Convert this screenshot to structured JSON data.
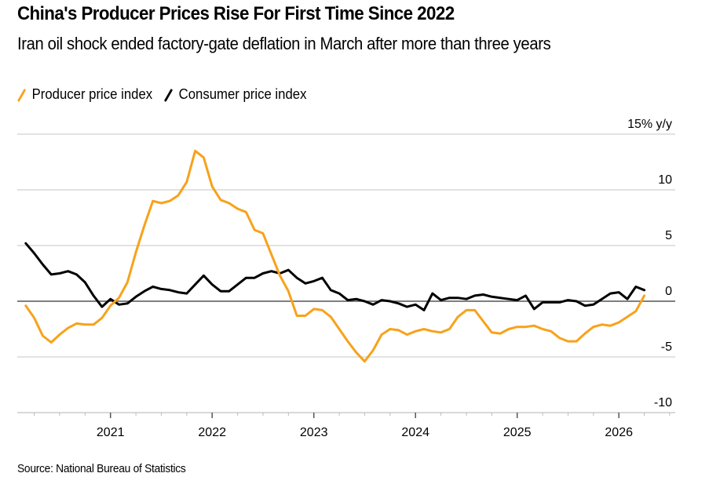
{
  "header": {
    "title": "China's Producer Prices Rise For First Time Since 2022",
    "subtitle": "Iran oil shock ended factory-gate deflation in March after more than three years"
  },
  "footer": {
    "source": "Source: National Bureau of Statistics"
  },
  "chart_data": {
    "type": "line",
    "title": "China's Producer Prices Rise For First Time Since 2022",
    "subtitle": "Iran oil shock ended factory-gate deflation in March after more than three years",
    "xlabel": "",
    "ylabel": "% y/y",
    "y_unit_label": "15% y/y",
    "ylim": [
      -10,
      15
    ],
    "yticks": [
      15,
      10,
      5,
      0,
      -5,
      -10
    ],
    "ytick_labels": [
      "15% y/y",
      "10",
      "5",
      "0",
      "-5",
      "-10"
    ],
    "xticks": [
      "2021",
      "2022",
      "2023",
      "2024",
      "2025",
      "2026"
    ],
    "x_start": "2020-02",
    "x_end": "2026-03",
    "grid": true,
    "legend_position": "top-left",
    "colors": {
      "ppi": "#f7a21b",
      "cpi": "#000000",
      "grid": "#d9d9d9",
      "zero": "#555555"
    },
    "x": [
      "2020-02",
      "2020-03",
      "2020-04",
      "2020-05",
      "2020-06",
      "2020-07",
      "2020-08",
      "2020-09",
      "2020-10",
      "2020-11",
      "2020-12",
      "2021-01",
      "2021-02",
      "2021-03",
      "2021-04",
      "2021-05",
      "2021-06",
      "2021-07",
      "2021-08",
      "2021-09",
      "2021-10",
      "2021-11",
      "2021-12",
      "2022-01",
      "2022-02",
      "2022-03",
      "2022-04",
      "2022-05",
      "2022-06",
      "2022-07",
      "2022-08",
      "2022-09",
      "2022-10",
      "2022-11",
      "2022-12",
      "2023-01",
      "2023-02",
      "2023-03",
      "2023-04",
      "2023-05",
      "2023-06",
      "2023-07",
      "2023-08",
      "2023-09",
      "2023-10",
      "2023-11",
      "2023-12",
      "2024-01",
      "2024-02",
      "2024-03",
      "2024-04",
      "2024-05",
      "2024-06",
      "2024-07",
      "2024-08",
      "2024-09",
      "2024-10",
      "2024-11",
      "2024-12",
      "2025-01",
      "2025-02",
      "2025-03",
      "2025-04",
      "2025-05",
      "2025-06",
      "2025-07",
      "2025-08",
      "2025-09",
      "2025-10",
      "2025-11",
      "2025-12",
      "2026-01",
      "2026-02",
      "2026-03"
    ],
    "series": [
      {
        "name": "Producer price index",
        "key": "ppi",
        "values": [
          -0.4,
          -1.5,
          -3.1,
          -3.7,
          -3.0,
          -2.4,
          -2.0,
          -2.1,
          -2.1,
          -1.5,
          -0.4,
          0.3,
          1.7,
          4.4,
          6.8,
          9.0,
          8.8,
          9.0,
          9.5,
          10.7,
          13.5,
          12.9,
          10.3,
          9.1,
          8.8,
          8.3,
          8.0,
          6.4,
          6.1,
          4.2,
          2.3,
          0.9,
          -1.3,
          -1.3,
          -0.7,
          -0.8,
          -1.4,
          -2.5,
          -3.6,
          -4.6,
          -5.4,
          -4.4,
          -3.0,
          -2.5,
          -2.6,
          -3.0,
          -2.7,
          -2.5,
          -2.7,
          -2.8,
          -2.5,
          -1.4,
          -0.8,
          -0.8,
          -1.8,
          -2.8,
          -2.9,
          -2.5,
          -2.3,
          -2.3,
          -2.2,
          -2.5,
          -2.7,
          -3.3,
          -3.6,
          -3.6,
          -2.9,
          -2.3,
          -2.1,
          -2.2,
          -1.9,
          -1.4,
          -0.9,
          0.5
        ]
      },
      {
        "name": "Consumer price index",
        "key": "cpi",
        "values": [
          5.2,
          4.3,
          3.3,
          2.4,
          2.5,
          2.7,
          2.4,
          1.7,
          0.5,
          -0.5,
          0.2,
          -0.3,
          -0.2,
          0.4,
          0.9,
          1.3,
          1.1,
          1.0,
          0.8,
          0.7,
          1.5,
          2.3,
          1.5,
          0.9,
          0.9,
          1.5,
          2.1,
          2.1,
          2.5,
          2.7,
          2.5,
          2.8,
          2.1,
          1.6,
          1.8,
          2.1,
          1.0,
          0.7,
          0.1,
          0.2,
          0.0,
          -0.3,
          0.1,
          0.0,
          -0.2,
          -0.5,
          -0.3,
          -0.8,
          0.7,
          0.1,
          0.3,
          0.3,
          0.2,
          0.5,
          0.6,
          0.4,
          0.3,
          0.2,
          0.1,
          0.5,
          -0.7,
          -0.1,
          -0.1,
          -0.1,
          0.1,
          0.0,
          -0.4,
          -0.3,
          0.2,
          0.7,
          0.8,
          0.2,
          1.3,
          1.0
        ]
      }
    ]
  }
}
